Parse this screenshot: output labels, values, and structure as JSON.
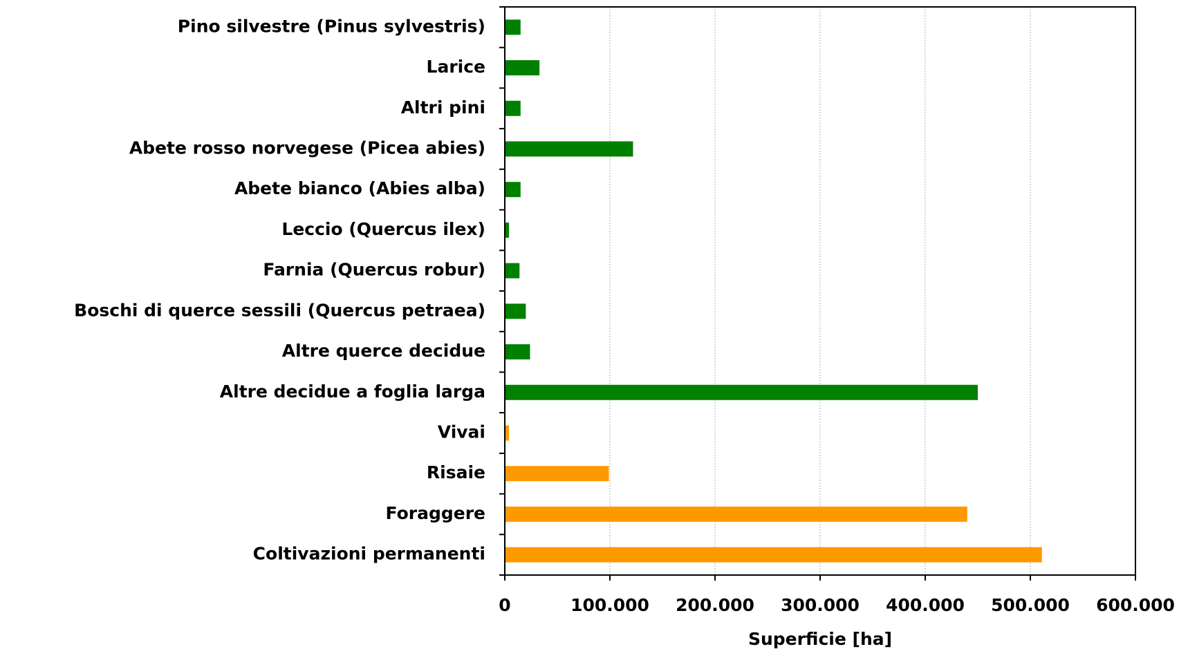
{
  "chart_data": {
    "type": "barh",
    "x_label": "Superficie [ha]",
    "categories": [
      "Pino silvestre (Pinus sylvestris)",
      "Larice",
      "Altri pini",
      "Abete rosso norvegese (Picea abies)",
      "Abete bianco (Abies alba)",
      "Leccio (Quercus ilex)",
      "Farnia (Quercus robur)",
      "Boschi di querce sessili (Quercus petraea)",
      "Altre querce decidue",
      "Altre decidue a foglia larga",
      "Vivai",
      "Risaie",
      "Foraggere",
      "Coltivazioni permanenti"
    ],
    "values": [
      15000,
      33000,
      15000,
      122000,
      15000,
      4000,
      14000,
      20000,
      24000,
      450000,
      4000,
      99000,
      440000,
      511000
    ],
    "colors": [
      "#008000",
      "#008000",
      "#008000",
      "#008000",
      "#008000",
      "#008000",
      "#008000",
      "#008000",
      "#008000",
      "#008000",
      "#ff9900",
      "#ff9900",
      "#ff9900",
      "#ff9900"
    ],
    "xlim": [
      0,
      600000
    ],
    "xticks": [
      0,
      {
        "value": 100000,
        "label": "100.000"
      },
      {
        "value": 200000,
        "label": "200.000"
      },
      {
        "value": 300000,
        "label": "300.000"
      },
      {
        "value": 400000,
        "label": "400.000"
      },
      {
        "value": 500000,
        "label": "500.000"
      },
      {
        "value": 600000,
        "label": "600.000"
      }
    ],
    "grid": true
  }
}
